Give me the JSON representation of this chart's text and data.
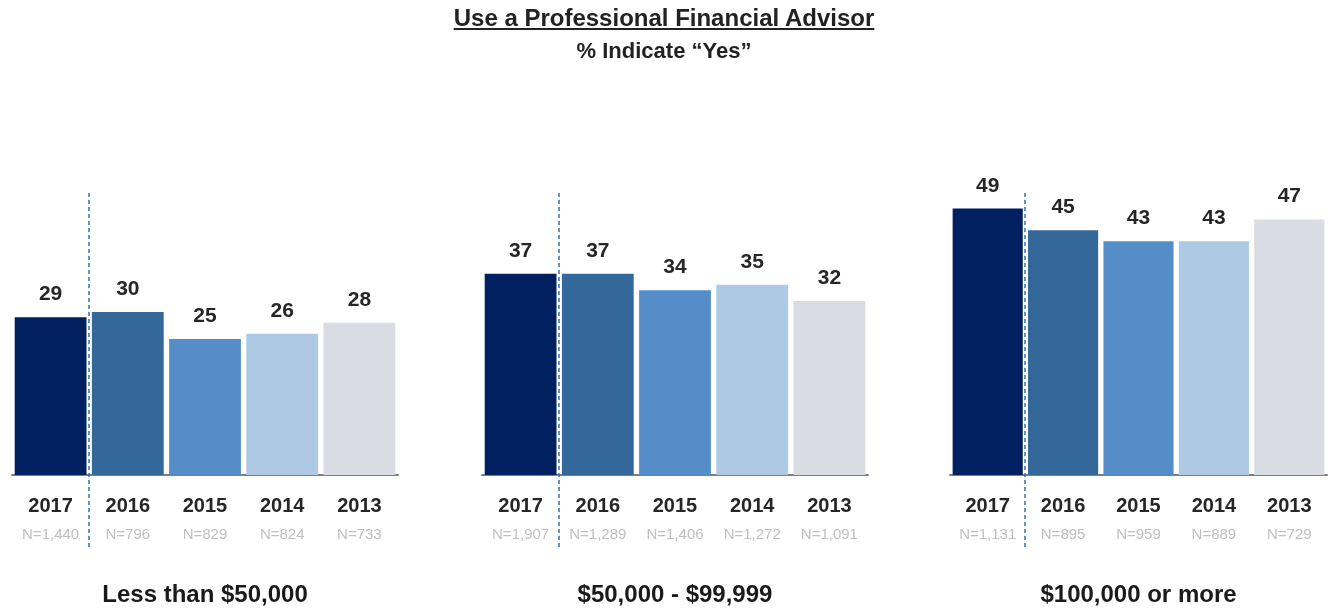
{
  "chart_data": [
    {
      "type": "bar",
      "xlabel": "Less than $50,000",
      "categories": [
        "2017\nN=1,440",
        "2016\nN=796",
        "2015\nN=829",
        "2014\nN=824",
        "2013\nN=733"
      ],
      "values": [
        29,
        30,
        25,
        26,
        28
      ],
      "colors": [
        "#002060",
        "#34679a",
        "#548dc8",
        "#adc9e4",
        "#d9dce3"
      ],
      "data_labels": true,
      "ref_lines": [
        {
          "axis": "x",
          "value": "2016\nN=796",
          "color": "#2e75b6",
          "line_style": "dashed"
        }
      ]
    },
    {
      "type": "bar",
      "title": "Use a Professional Financial Advisor",
      "subtitle": "% Indicate “Yes”",
      "xlabel": "$50,000 - $99,999",
      "categories": [
        "2017\nN=1,907",
        "2016\nN=1,289",
        "2015\nN=1,406",
        "2014\nN=1,272",
        "2013\nN=1,091"
      ],
      "values": [
        37,
        37,
        34,
        35,
        32
      ],
      "colors": [
        "#002060",
        "#34679a",
        "#548dc8",
        "#adc9e4",
        "#d9dce3"
      ],
      "data_labels": true,
      "ref_lines": [
        {
          "axis": "x",
          "value": "2016\nN=1,289",
          "color": "#2e75b6",
          "line_style": "dashed"
        }
      ]
    },
    {
      "type": "bar",
      "xlabel": "$100,000 or more",
      "categories": [
        "2017\nN=1,131",
        "2016\nN=895",
        "2015\nN=959",
        "2014\nN=889",
        "2013\nN=729"
      ],
      "values": [
        49,
        45,
        43,
        43,
        47
      ],
      "colors": [
        "#002060",
        "#34679a",
        "#548dc8",
        "#adc9e4",
        "#d9dce3"
      ],
      "data_labels": true,
      "ref_lines": [
        {
          "axis": "x",
          "value": "2016\nN=895",
          "color": "#2e75b6",
          "line_style": "dashed"
        }
      ]
    }
  ]
}
